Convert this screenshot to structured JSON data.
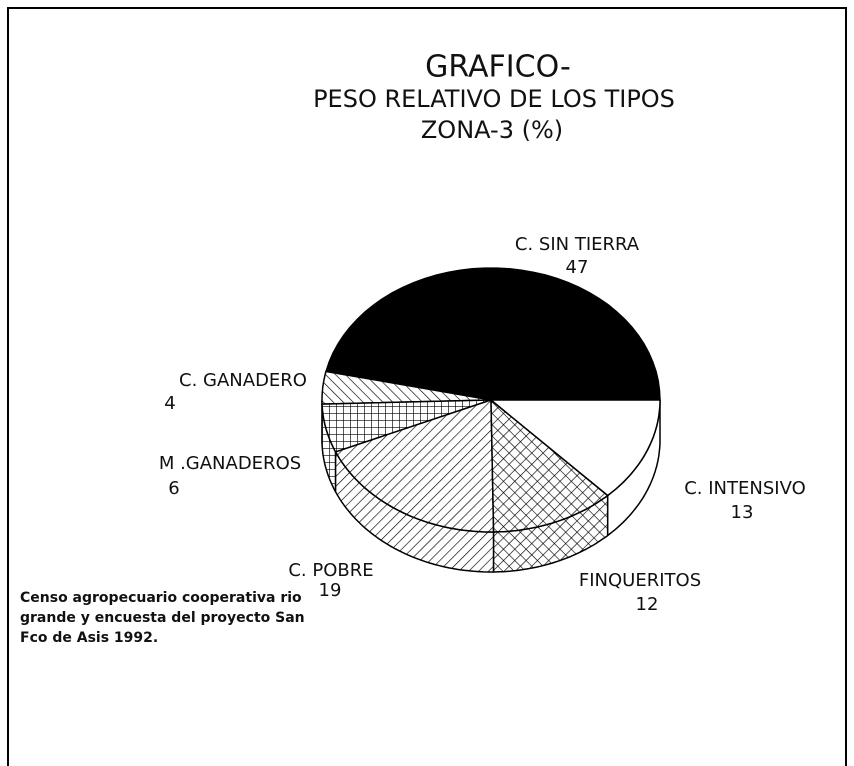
{
  "chart_data": {
    "type": "pie",
    "title": [
      "GRAFICO-",
      "PESO RELATIVO DE LOS TIPOS",
      "ZONA-3 (%)"
    ],
    "categories": [
      "C. SIN TIERRA",
      "C. GANADERO",
      "M .GANADEROS",
      "C. POBRE",
      "FINQUERITOS",
      "C. INTENSIVO"
    ],
    "values": [
      47,
      4,
      6,
      19,
      12,
      13
    ],
    "note": [
      "Censo agropecuario cooperativa rio",
      "grande y encuesta del proyecto San",
      "Fco de Asis 1992."
    ]
  }
}
